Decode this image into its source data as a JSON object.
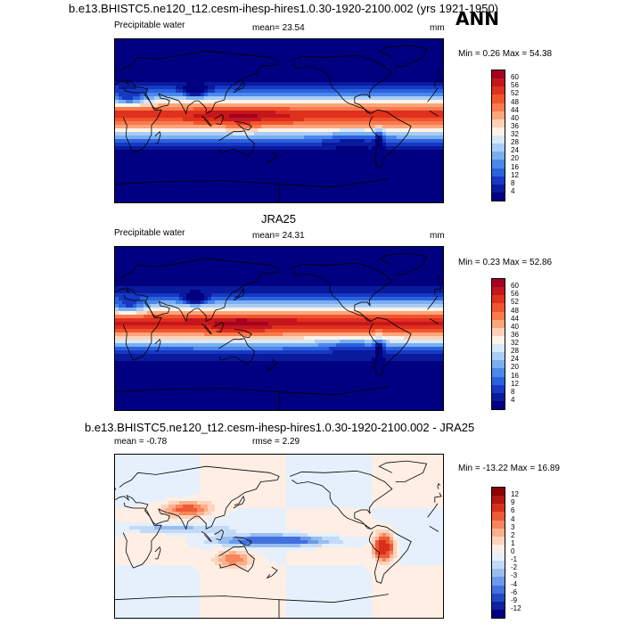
{
  "header": {
    "case_title": "b.e13.BHISTC5.ne120_t12.cesm-ihesp-hires1.0.30-1920-2100.002 (yrs 1921-1950)",
    "season": "ANN"
  },
  "panels": [
    {
      "variable": "Precipitable water",
      "stat": "mean=  23.54",
      "units": "mm",
      "minmax": "Min =   0.26 Max =  54.38"
    },
    {
      "reference": "JRA25",
      "variable": "Precipitable water",
      "stat": "mean=  24.31",
      "units": "mm",
      "minmax": "Min =   0.23 Max =  52.86"
    },
    {
      "diff_title": "b.e13.BHISTC5.ne120_t12.cesm-ihesp-hires1.0.30-1920-2100.002 - JRA25",
      "stat": "mean =  -0.78",
      "rmse": "rmse =    2.29",
      "minmax": "Min = -13.22 Max =  16.89"
    }
  ],
  "chart_data": [
    {
      "type": "heatmap",
      "title": "b.e13.BHISTC5.ne120_t12.cesm-ihesp-hires1.0.30-1920-2100.002 (yrs 1921-1950)",
      "subtitle": "Precipitable water",
      "units": "mm",
      "mean": 23.54,
      "min": 0.26,
      "max": 54.38,
      "colorbar_levels": [
        "60",
        "56",
        "52",
        "48",
        "44",
        "40",
        "36",
        "32",
        "28",
        "24",
        "20",
        "16",
        "12",
        "8",
        "4"
      ],
      "colorbar_colors": [
        "#a50021",
        "#c4161c",
        "#e0301e",
        "#f2552d",
        "#f77b4d",
        "#fca57b",
        "#fdd2b8",
        "#fff3e7",
        "#d7e8fb",
        "#a9cdf7",
        "#7aaef0",
        "#4c88ea",
        "#2a62de",
        "#1638c3",
        "#0a1a9c",
        "#000080"
      ]
    },
    {
      "type": "heatmap",
      "title": "JRA25",
      "subtitle": "Precipitable water",
      "units": "mm",
      "mean": 24.31,
      "min": 0.23,
      "max": 52.86,
      "colorbar_levels": [
        "60",
        "56",
        "52",
        "48",
        "44",
        "40",
        "36",
        "32",
        "28",
        "24",
        "20",
        "16",
        "12",
        "8",
        "4"
      ],
      "colorbar_colors": [
        "#a50021",
        "#c4161c",
        "#e0301e",
        "#f2552d",
        "#f77b4d",
        "#fca57b",
        "#fdd2b8",
        "#fff3e7",
        "#d7e8fb",
        "#a9cdf7",
        "#7aaef0",
        "#4c88ea",
        "#2a62de",
        "#1638c3",
        "#0a1a9c",
        "#000080"
      ]
    },
    {
      "type": "heatmap",
      "title": "b.e13.BHISTC5.ne120_t12.cesm-ihesp-hires1.0.30-1920-2100.002 - JRA25",
      "mean": -0.78,
      "rmse": 2.29,
      "min": -13.22,
      "max": 16.89,
      "colorbar_levels": [
        "12",
        "9",
        "6",
        "4",
        "3",
        "2",
        "1",
        "0",
        "-1",
        "-2",
        "-3",
        "-4",
        "-6",
        "-9",
        "-12"
      ],
      "colorbar_colors": [
        "#8b0000",
        "#b3150f",
        "#d6301c",
        "#ee5a35",
        "#f7865c",
        "#fbb08c",
        "#fdd3bd",
        "#feeee4",
        "#e6f0fc",
        "#c3daf7",
        "#98bdf1",
        "#6c99e8",
        "#4270dc",
        "#2448c4",
        "#0f22a0",
        "#000080"
      ]
    }
  ]
}
